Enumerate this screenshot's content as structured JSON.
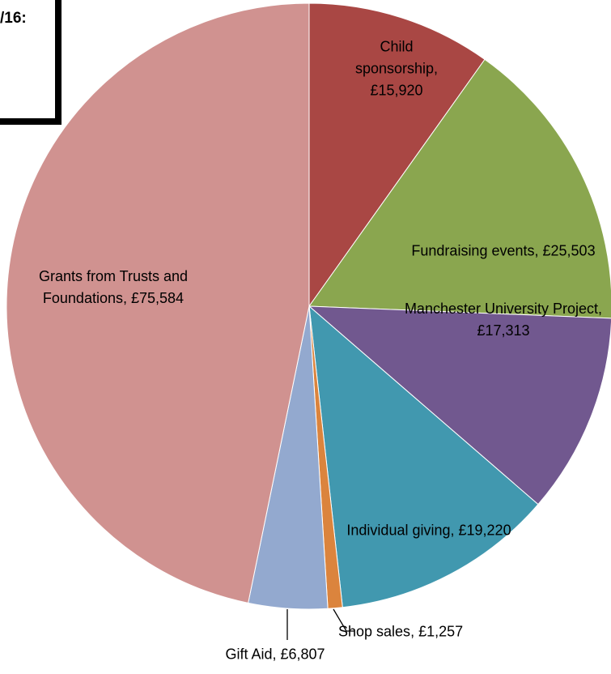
{
  "chart_data": {
    "type": "pie",
    "title": "/16:",
    "categories": [
      "Child sponsorship",
      "Fundraising events",
      "Manchester University Project",
      "Individual giving",
      "Shop sales",
      "Gift Aid",
      "Grants from Trusts and Foundations"
    ],
    "values": [
      15920,
      25503,
      17313,
      19220,
      1257,
      6807,
      75584
    ],
    "value_labels": [
      "£15,920",
      "£25,503",
      "£17,313",
      "£19,220",
      "£1,257",
      "£6,807",
      "£75,584"
    ],
    "colors": [
      "#a94744",
      "#8aa64f",
      "#71588f",
      "#4198af",
      "#db843d",
      "#93a9cf",
      "#d09290"
    ]
  }
}
